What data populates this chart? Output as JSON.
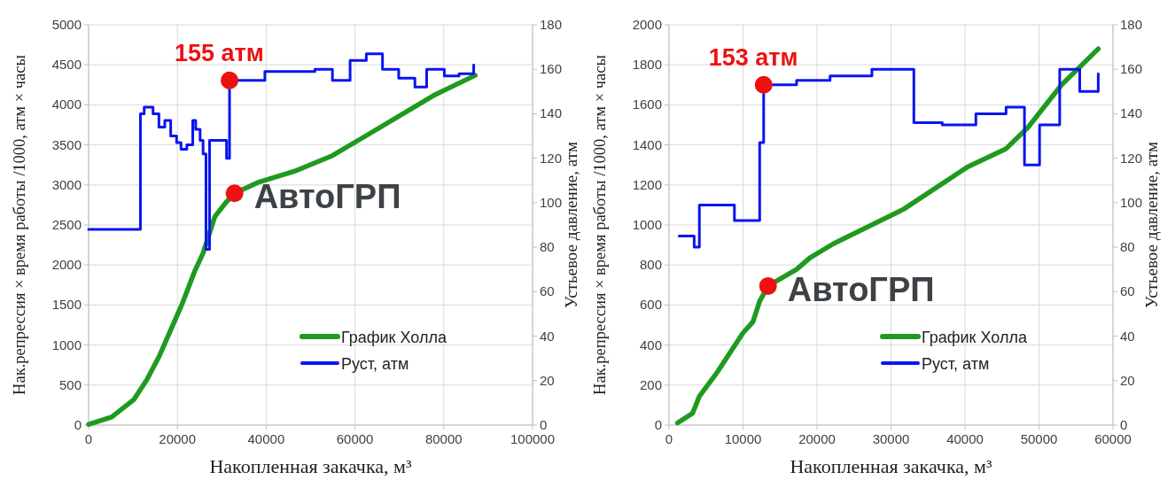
{
  "chart_data": [
    {
      "type": "line",
      "xlabel": "Накопленная закачка, м³",
      "ylabel": "Нак.репрессия × время работы /1000, атм × часы",
      "y2label": "Устьевое давление, атм",
      "xlim": [
        0,
        100000
      ],
      "xticks": [
        0,
        20000,
        40000,
        60000,
        80000,
        100000
      ],
      "ylim": [
        0,
        5000
      ],
      "yticks": [
        0,
        500,
        1000,
        1500,
        2000,
        2500,
        3000,
        3500,
        4000,
        4500,
        5000
      ],
      "y2lim": [
        0,
        180
      ],
      "y2ticks": [
        0,
        20,
        40,
        60,
        80,
        100,
        120,
        140,
        160,
        180
      ],
      "grid": true,
      "legend": "bottom right",
      "series": [
        {
          "name": "График Холла",
          "color": "#1f9a1f",
          "x": [
            0,
            5200,
            10150,
            13120,
            15900,
            18490,
            21070,
            23860,
            25800,
            28430,
            31070,
            32870,
            38370,
            46330,
            54920,
            61570,
            71500,
            78130,
            87070
          ],
          "values": [
            10,
            100,
            316,
            567,
            860,
            1187,
            1514,
            1917,
            2150,
            2604,
            2790,
            2895,
            3036,
            3170,
            3366,
            3584,
            3911,
            4129,
            4368
          ]
        },
        {
          "name": "Руст, атм",
          "type": "step",
          "axis": "y2",
          "color": "#0a14f0",
          "x": [
            0,
            11670,
            12520,
            14510,
            15840,
            17160,
            18490,
            19820,
            20810,
            22130,
            23460,
            24120,
            25110,
            25780,
            26440,
            27240,
            31070,
            31740,
            39700,
            50960,
            54920,
            58900,
            62550,
            66200,
            69850,
            73500,
            76140,
            80120,
            83440,
            86740,
            86740
          ],
          "values": [
            88,
            140,
            143,
            140,
            134,
            137,
            130,
            127,
            124,
            126,
            137,
            133,
            128,
            122,
            79,
            128,
            120,
            155,
            159,
            160,
            155,
            164,
            167,
            160,
            156,
            152,
            160,
            157,
            158,
            158,
            162
          ]
        }
      ],
      "annotations": [
        {
          "text": "155 атм",
          "x": 31740,
          "y": 4306
        },
        {
          "text": "АвтоГРП",
          "x": 32870,
          "y": 2895
        }
      ]
    },
    {
      "type": "line",
      "xlabel": "Накопленная закачка, м³",
      "ylabel": "Нак.репрессия × время работы /1000, атм × часы",
      "y2label": "Устьевое давление, атм",
      "xlim": [
        0,
        60000
      ],
      "xticks": [
        0,
        10000,
        20000,
        30000,
        40000,
        50000,
        60000
      ],
      "ylim": [
        0,
        2000
      ],
      "yticks": [
        0,
        200,
        400,
        600,
        800,
        1000,
        1200,
        1400,
        1600,
        1800,
        2000
      ],
      "y2lim": [
        0,
        180
      ],
      "y2ticks": [
        0,
        20,
        40,
        60,
        80,
        100,
        120,
        140,
        160,
        180
      ],
      "grid": true,
      "legend": "bottom right",
      "series": [
        {
          "name": "График Холла",
          "color": "#1f9a1f",
          "x": [
            1150,
            3180,
            4090,
            6360,
            9990,
            11340,
            12250,
            13380,
            17240,
            19040,
            22210,
            31720,
            40340,
            45550,
            48500,
            53030,
            58010
          ],
          "values": [
            11,
            59,
            143,
            256,
            460,
            516,
            619,
            695,
            778,
            836,
            906,
            1079,
            1290,
            1381,
            1487,
            1699,
            1880
          ]
        },
        {
          "name": "Руст, атм",
          "type": "step",
          "axis": "y2",
          "color": "#0a14f0",
          "x": [
            1370,
            3400,
            4100,
            8840,
            12250,
            12790,
            17240,
            21760,
            27420,
            33090,
            36930,
            41470,
            45550,
            48040,
            50080,
            52800,
            55510,
            58010,
            58010
          ],
          "values": [
            85,
            80,
            99,
            92,
            127,
            153,
            155,
            157,
            160,
            136,
            135,
            140,
            143,
            117,
            135,
            160,
            150,
            150,
            158
          ]
        }
      ],
      "annotations": [
        {
          "text": "153 атм",
          "x": 12790,
          "y": 1700
        },
        {
          "text": "АвтоГРП",
          "x": 13380,
          "y": 695
        }
      ]
    }
  ]
}
